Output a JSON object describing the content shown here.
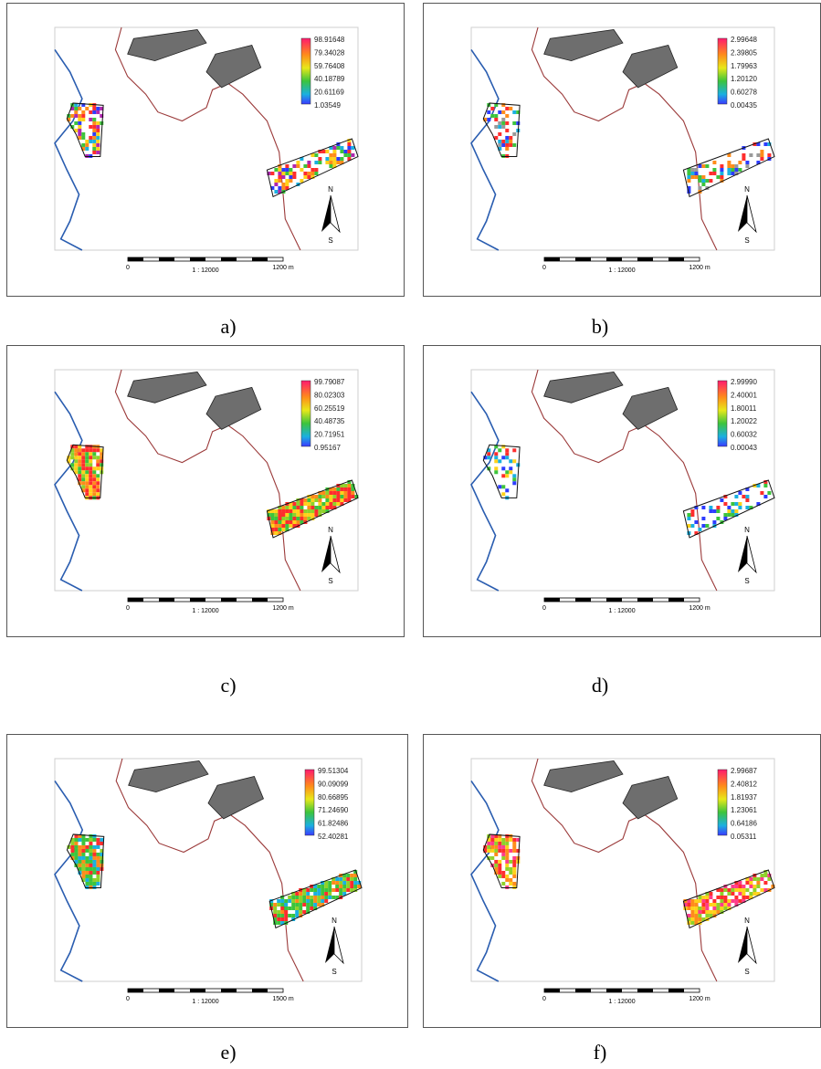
{
  "panels": [
    {
      "caption": "a)",
      "legend": [
        "98.91648",
        "79.34028",
        "59.76408",
        "40.18789",
        "20.61169",
        "1.03549"
      ],
      "scale": {
        "start": "0",
        "end": "1200 m",
        "ratio": "1 : 12000"
      },
      "north": "N",
      "south": "S",
      "fill": "mixed",
      "density": 0.55
    },
    {
      "caption": "b)",
      "legend": [
        "2.99648",
        "2.39805",
        "1.79963",
        "1.20120",
        "0.60278",
        "0.00435"
      ],
      "scale": {
        "start": "0",
        "end": "1200 m",
        "ratio": "1 : 12000"
      },
      "north": "N",
      "south": "S",
      "fill": "sparse",
      "density": 0.45
    },
    {
      "caption": "c)",
      "legend": [
        "99.79087",
        "80.02303",
        "60.25519",
        "40.48735",
        "20.71951",
        "0.95167"
      ],
      "scale": {
        "start": "0",
        "end": "1200 m",
        "ratio": "1 : 12000"
      },
      "north": "N",
      "south": "S",
      "fill": "dense-red",
      "density": 0.95
    },
    {
      "caption": "d)",
      "legend": [
        "2.99990",
        "2.40001",
        "1.80011",
        "1.20022",
        "0.60032",
        "0.00043"
      ],
      "scale": {
        "start": "0",
        "end": "1200 m",
        "ratio": "1 : 12000"
      },
      "north": "N",
      "south": "S",
      "fill": "sparse-blue",
      "density": 0.4
    },
    {
      "caption": "e)",
      "legend": [
        "99.51304",
        "90.09099",
        "80.66895",
        "71.24690",
        "61.82486",
        "52.40281"
      ],
      "scale": {
        "start": "0",
        "end": "1500 m",
        "ratio": "1 : 12000"
      },
      "north": "N",
      "south": "S",
      "fill": "dense-green",
      "density": 0.9
    },
    {
      "caption": "f)",
      "legend": [
        "2.99687",
        "2.40812",
        "1.81937",
        "1.23061",
        "0.64186",
        "0.05311"
      ],
      "scale": {
        "start": "0",
        "end": "1200 m",
        "ratio": "1 : 12000"
      },
      "north": "N",
      "south": "S",
      "fill": "warm",
      "density": 0.75
    }
  ],
  "colors": {
    "river": "#2a5db0",
    "boundary": "#9b3a3a",
    "building": "#6e6e6e"
  }
}
